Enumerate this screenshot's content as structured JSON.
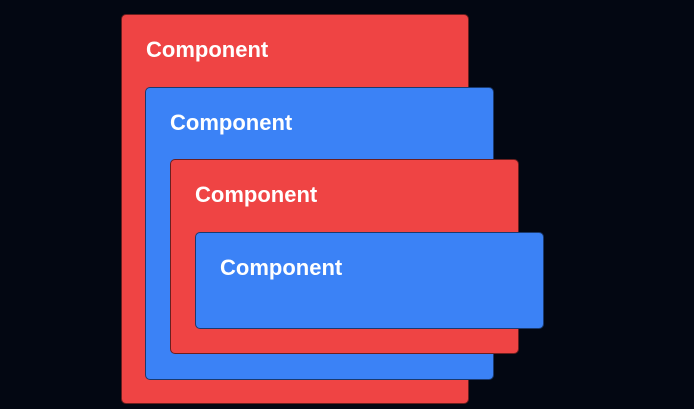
{
  "components": [
    {
      "label": "Component",
      "color": "#ef4444"
    },
    {
      "label": "Component",
      "color": "#3b82f6"
    },
    {
      "label": "Component",
      "color": "#ef4444"
    },
    {
      "label": "Component",
      "color": "#3b82f6"
    }
  ]
}
